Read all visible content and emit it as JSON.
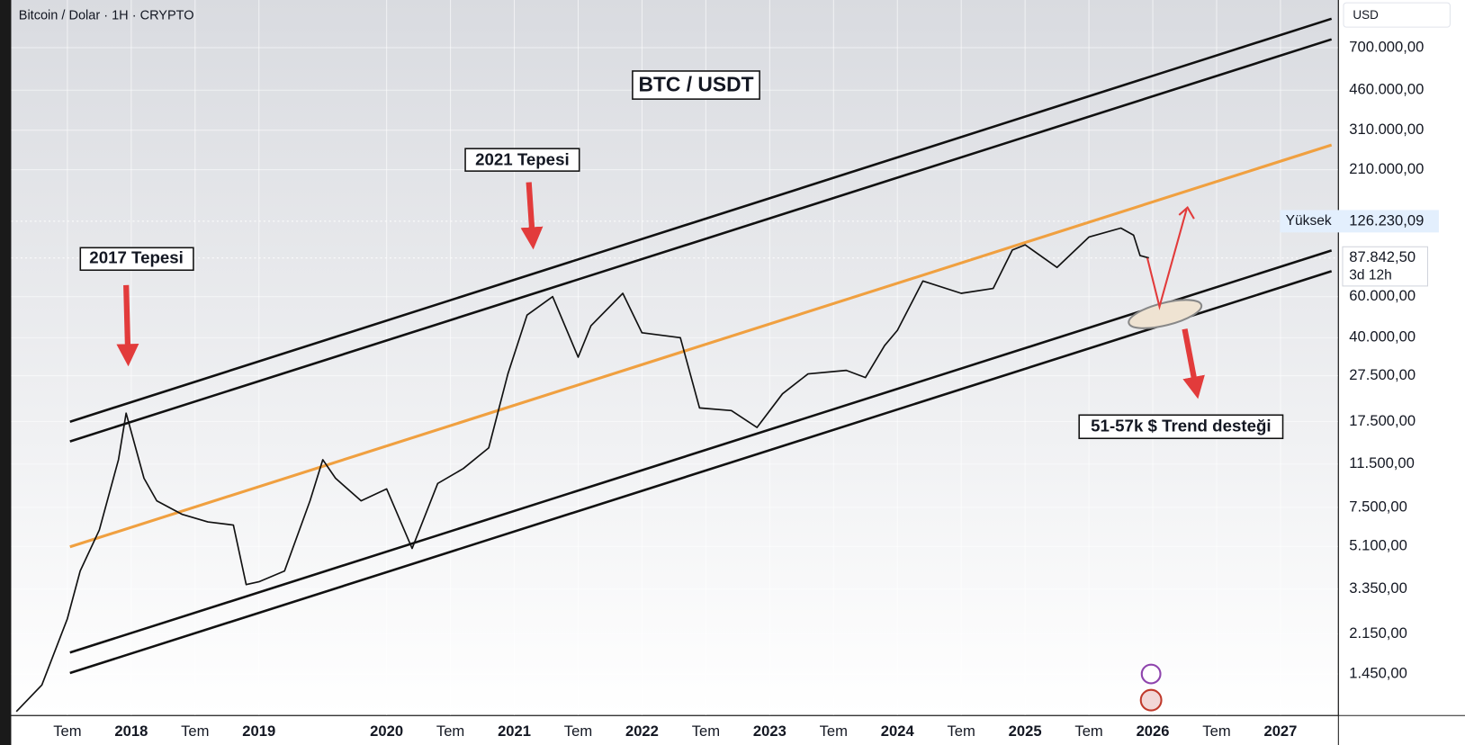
{
  "chart_data": {
    "type": "line",
    "title": "BTC / USDT",
    "header": "Bitcoin / Dolar · 1H · CRYPTO",
    "currency": "USD",
    "log_y": true,
    "grid": true,
    "x": [
      2017.1,
      2017.3,
      2017.5,
      2017.6,
      2017.75,
      2017.9,
      2017.96,
      2018.1,
      2018.2,
      2018.4,
      2018.6,
      2018.8,
      2018.9,
      2019.0,
      2019.2,
      2019.4,
      2019.5,
      2019.6,
      2019.8,
      2020.0,
      2020.2,
      2020.4,
      2020.6,
      2020.8,
      2020.95,
      2021.1,
      2021.3,
      2021.5,
      2021.6,
      2021.85,
      2022.0,
      2022.3,
      2022.45,
      2022.7,
      2022.9,
      2023.1,
      2023.3,
      2023.6,
      2023.75,
      2023.9,
      2024.0,
      2024.2,
      2024.5,
      2024.75,
      2024.9,
      2025.0,
      2025.25,
      2025.5,
      2025.75,
      2025.85,
      2025.9,
      2025.97
    ],
    "series": [
      {
        "color": "#111111",
        "values": [
          1000,
          1300,
          2500,
          4000,
          6000,
          12000,
          19000,
          10000,
          8000,
          7000,
          6500,
          6300,
          3500,
          3600,
          4000,
          8000,
          12000,
          10000,
          8000,
          9000,
          5000,
          9500,
          11000,
          13500,
          28000,
          50000,
          60000,
          33000,
          45000,
          62000,
          42000,
          40000,
          20000,
          19500,
          16500,
          23000,
          28000,
          29000,
          27000,
          37000,
          43000,
          70000,
          62000,
          65000,
          95000,
          100000,
          80000,
          108000,
          118000,
          110000,
          90000,
          87842.5
        ]
      }
    ],
    "trend_lines": [
      {
        "color": "#111111",
        "x": [
          2017.52,
          2027.4
        ],
        "values": [
          17460,
          931000
        ]
      },
      {
        "color": "#111111",
        "x": [
          2017.52,
          2027.4
        ],
        "values": [
          14380,
          760000
        ]
      },
      {
        "color": "#f0a040",
        "x": [
          2017.52,
          2027.4
        ],
        "values": [
          5080,
          268000
        ]
      },
      {
        "color": "#111111",
        "x": [
          2017.52,
          2027.4
        ],
        "values": [
          1790,
          94600
        ]
      },
      {
        "color": "#111111",
        "x": [
          2017.52,
          2027.4
        ],
        "values": [
          1463,
          77100
        ]
      }
    ],
    "annotations": [
      "2017 Tepesi",
      "2021 Tepesi",
      "51-57k $ Trend desteği"
    ],
    "markers": [
      {
        "name": "Yüksek",
        "value": 126230.09,
        "value_label": "126.230,09"
      },
      {
        "value": 87842.5,
        "value_label": "87.842,50",
        "countdown": "3d 12h"
      }
    ],
    "xlim": [
      2017.06,
      2027.45
    ],
    "xticks": [
      {
        "value": 2017.5,
        "label": "Tem"
      },
      2018,
      {
        "value": 2018.5,
        "label": "Tem"
      },
      2019,
      2020,
      {
        "value": 2020.5,
        "label": "Tem"
      },
      2021,
      {
        "value": 2021.5,
        "label": "Tem"
      },
      2022,
      {
        "value": 2022.5,
        "label": "Tem"
      },
      2023,
      {
        "value": 2023.5,
        "label": "Tem"
      },
      2024,
      {
        "value": 2024.5,
        "label": "Tem"
      },
      2025,
      {
        "value": 2025.5,
        "label": "Tem"
      },
      2026,
      {
        "value": 2026.5,
        "label": "Tem"
      },
      2027
    ],
    "ylim": [
      966,
      1120000
    ],
    "yticks": [
      {
        "value": 700000,
        "label": "700.000,00"
      },
      {
        "value": 460000,
        "label": "460.000,00"
      },
      {
        "value": 310000,
        "label": "310.000,00"
      },
      {
        "value": 210000,
        "label": "210.000,00"
      },
      {
        "value": 60000,
        "label": "60.000,00"
      },
      {
        "value": 40000,
        "label": "40.000,00"
      },
      {
        "value": 27500,
        "label": "27.500,00"
      },
      {
        "value": 17500,
        "label": "17.500,00"
      },
      {
        "value": 11500,
        "label": "11.500,00"
      },
      {
        "value": 7500,
        "label": "7.500,00"
      },
      {
        "value": 5100,
        "label": "5.100,00"
      },
      {
        "value": 3350,
        "label": "3.350,00"
      },
      {
        "value": 2150,
        "label": "2.150,00"
      },
      {
        "value": 1450,
        "label": "1.450,00"
      }
    ]
  }
}
